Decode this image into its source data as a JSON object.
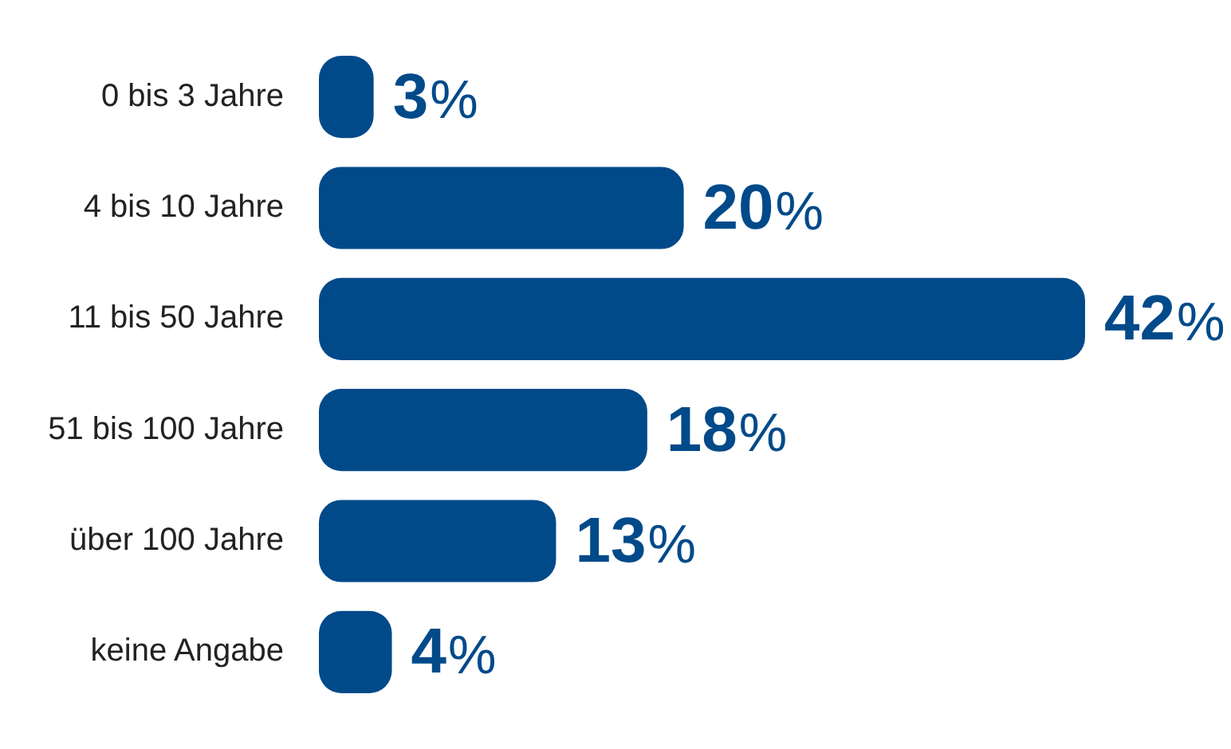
{
  "chart_data": {
    "type": "bar",
    "orientation": "horizontal",
    "categories": [
      "0 bis 3 Jahre",
      "4 bis 10 Jahre",
      "11 bis 50 Jahre",
      "51 bis 100 Jahre",
      "über 100 Jahre",
      "keine Angabe"
    ],
    "values": [
      3,
      20,
      42,
      18,
      13,
      4
    ],
    "color": "#004a8a",
    "xlim": [
      0,
      50
    ],
    "tick_labels": "y",
    "legend": false,
    "value_labels": [
      "3%",
      "20%",
      "42%",
      "18%",
      "13%",
      "4%"
    ]
  }
}
